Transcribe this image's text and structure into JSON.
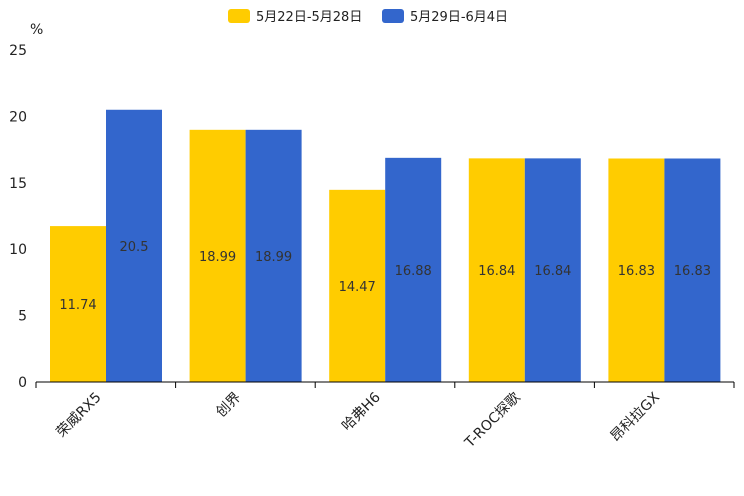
{
  "chart_data": {
    "type": "bar",
    "ylabel": "%",
    "ylim": [
      0,
      25
    ],
    "yticks": [
      0,
      5,
      10,
      15,
      20,
      25
    ],
    "categories": [
      "荣威RX5",
      "创界",
      "哈弗H6",
      "T-ROC探歌",
      "昂科拉GX"
    ],
    "series": [
      {
        "name": "5月22日-5月28日",
        "color": "#FFCC00",
        "values": [
          11.74,
          18.99,
          14.47,
          16.84,
          16.83
        ]
      },
      {
        "name": "5月29日-6月4日",
        "color": "#3366CC",
        "values": [
          20.5,
          18.99,
          16.88,
          16.84,
          16.83
        ]
      }
    ],
    "legend_position": "top-center"
  }
}
